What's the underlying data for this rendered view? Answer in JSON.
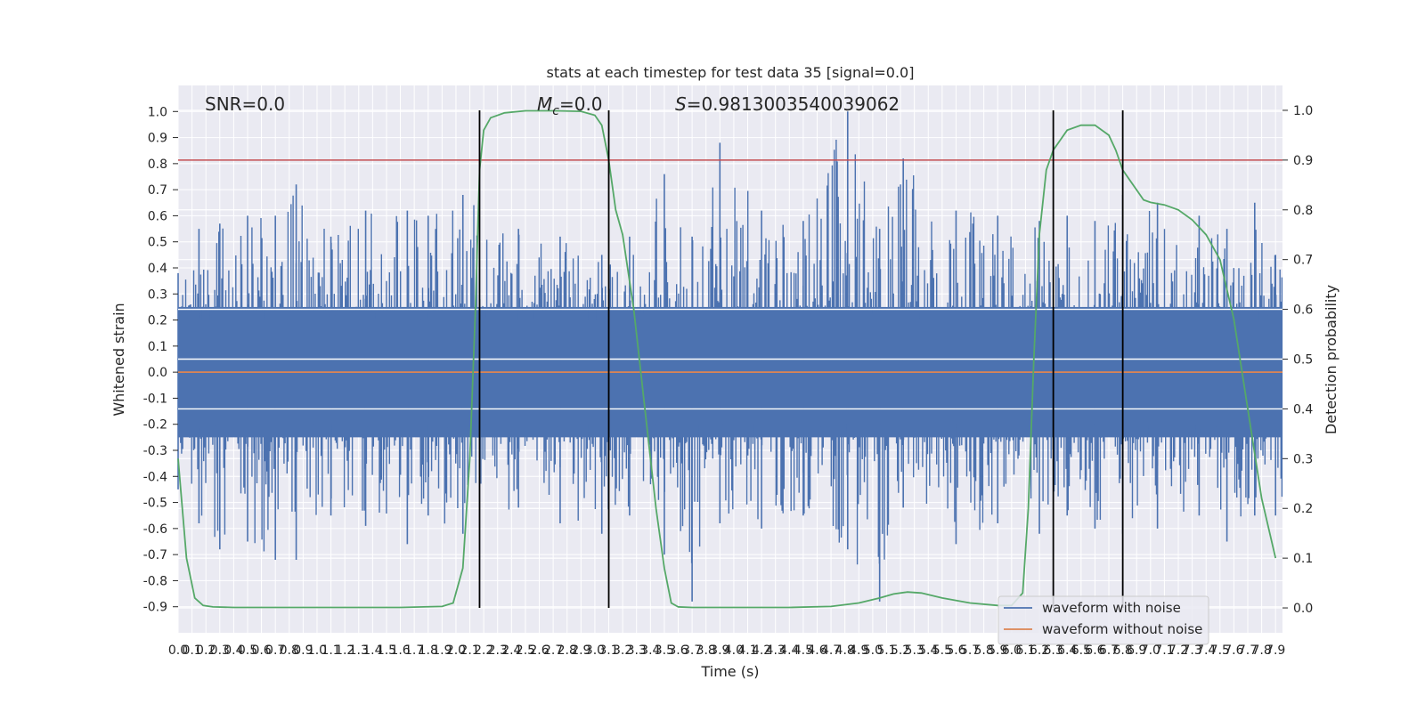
{
  "chart_data": {
    "type": "line",
    "title": "stats at each timestep for test data 35 [signal=0.0]",
    "xlabel": "Time (s)",
    "ylabel": "Whitened strain",
    "y2label": "Detection probability",
    "xlim": [
      0.0,
      7.95
    ],
    "ylim": [
      -1.0,
      1.1
    ],
    "y2lim": [
      -0.05,
      1.05
    ],
    "grid": true,
    "legend_placement": "bottom-right",
    "annotations": {
      "snr": "SNR=0.0",
      "mc_symbol": "M",
      "mc_sub": "c",
      "mc_value": "=0.0",
      "s_symbol": "S",
      "s_value": "=0.9813003540039062"
    },
    "x_ticks": [
      "0.0",
      "0.1",
      "0.2",
      "0.3",
      "0.4",
      "0.5",
      "0.6",
      "0.7",
      "0.8",
      "0.9",
      "1.0",
      "1.1",
      "1.2",
      "1.3",
      "1.4",
      "1.5",
      "1.6",
      "1.7",
      "1.8",
      "1.9",
      "2.0",
      "2.1",
      "2.2",
      "2.3",
      "2.4",
      "2.5",
      "2.6",
      "2.7",
      "2.8",
      "2.9",
      "3.0",
      "3.1",
      "3.2",
      "3.3",
      "3.4",
      "3.5",
      "3.6",
      "3.7",
      "3.8",
      "3.9",
      "4.0",
      "4.1",
      "4.2",
      "4.3",
      "4.4",
      "4.5",
      "4.6",
      "4.7",
      "4.8",
      "4.9",
      "5.0",
      "5.1",
      "5.2",
      "5.3",
      "5.4",
      "5.5",
      "5.6",
      "5.7",
      "5.8",
      "5.9",
      "6.0",
      "6.1",
      "6.2",
      "6.3",
      "6.4",
      "6.5",
      "6.6",
      "6.7",
      "6.8",
      "6.9",
      "7.0",
      "7.1",
      "7.2",
      "7.3",
      "7.4",
      "7.5",
      "7.6",
      "7.7",
      "7.8",
      "7.9"
    ],
    "y_ticks": [
      "-0.9",
      "-0.8",
      "-0.7",
      "-0.6",
      "-0.5",
      "-0.4",
      "-0.3",
      "-0.2",
      "-0.1",
      "0.0",
      "0.1",
      "0.2",
      "0.3",
      "0.4",
      "0.5",
      "0.6",
      "0.7",
      "0.8",
      "0.9",
      "1.0"
    ],
    "y2_ticks": [
      "0.0",
      "0.1",
      "0.2",
      "0.3",
      "0.4",
      "0.5",
      "0.6",
      "0.7",
      "0.8",
      "0.9",
      "1.0"
    ],
    "threshold": {
      "value": 0.9,
      "axis": "y2",
      "color": "#c44e52"
    },
    "vertical_lines": [
      2.17,
      3.1,
      6.3,
      6.8
    ],
    "series": [
      {
        "name": "waveform with noise",
        "color": "#4c72b0",
        "summary": "dense noise, mostly within ±0.35, peaks up to 1.0",
        "x": [
          0.0,
          0.15,
          0.3,
          0.5,
          0.7,
          0.85,
          1.1,
          1.35,
          1.65,
          1.8,
          2.05,
          2.45,
          2.75,
          3.05,
          3.25,
          3.5,
          3.7,
          3.9,
          4.2,
          4.5,
          4.82,
          5.05,
          5.22,
          5.6,
          5.9,
          6.2,
          6.4,
          6.6,
          6.8,
          7.05,
          7.35,
          7.55,
          7.75,
          7.9
        ],
        "y": [
          0.38,
          0.55,
          0.57,
          0.6,
          0.6,
          0.72,
          0.52,
          0.62,
          0.62,
          0.6,
          0.68,
          0.55,
          0.52,
          0.45,
          0.52,
          0.76,
          0.52,
          0.88,
          0.62,
          0.58,
          1.0,
          0.55,
          0.82,
          0.62,
          0.6,
          0.58,
          0.6,
          0.58,
          0.68,
          0.65,
          0.6,
          0.55,
          0.65,
          0.45
        ],
        "y_min": [
          -0.45,
          -0.58,
          -0.68,
          -0.65,
          -0.72,
          -0.72,
          -0.55,
          -0.59,
          -0.66,
          -0.55,
          -0.62,
          -0.52,
          -0.58,
          -0.62,
          -0.55,
          -0.7,
          -0.88,
          -0.58,
          -0.6,
          -0.55,
          -0.68,
          -0.88,
          -0.52,
          -0.66,
          -0.58,
          -0.62,
          -0.55,
          -0.6,
          -0.62,
          -0.6,
          -0.55,
          -0.65,
          -0.55,
          -0.55
        ]
      },
      {
        "name": "waveform without noise",
        "color": "#dd8452",
        "x": [
          0.0,
          7.95
        ],
        "y": [
          0.0,
          0.0
        ]
      },
      {
        "name": "detection probability",
        "axis": "y2",
        "color": "#55a868",
        "x": [
          0.0,
          0.06,
          0.12,
          0.18,
          0.25,
          0.4,
          0.8,
          1.2,
          1.6,
          1.9,
          1.98,
          2.05,
          2.1,
          2.14,
          2.17,
          2.2,
          2.25,
          2.35,
          2.5,
          2.7,
          2.9,
          3.0,
          3.05,
          3.1,
          3.15,
          3.2,
          3.28,
          3.36,
          3.44,
          3.5,
          3.55,
          3.6,
          3.7,
          4.0,
          4.4,
          4.7,
          4.9,
          5.05,
          5.15,
          5.25,
          5.35,
          5.5,
          5.7,
          5.9,
          6.0,
          6.08,
          6.12,
          6.16,
          6.2,
          6.25,
          6.3,
          6.35,
          6.4,
          6.5,
          6.6,
          6.7,
          6.75,
          6.8,
          6.85,
          6.9,
          6.95,
          7.0,
          7.1,
          7.2,
          7.3,
          7.4,
          7.5,
          7.6,
          7.7,
          7.8,
          7.9
        ],
        "y": [
          0.3,
          0.1,
          0.02,
          0.005,
          0.002,
          0.001,
          0.001,
          0.001,
          0.001,
          0.003,
          0.01,
          0.08,
          0.3,
          0.6,
          0.88,
          0.96,
          0.985,
          0.995,
          0.999,
          0.999,
          0.998,
          0.99,
          0.97,
          0.9,
          0.8,
          0.75,
          0.6,
          0.4,
          0.2,
          0.08,
          0.01,
          0.002,
          0.001,
          0.001,
          0.001,
          0.003,
          0.01,
          0.02,
          0.028,
          0.032,
          0.03,
          0.02,
          0.01,
          0.005,
          0.005,
          0.03,
          0.2,
          0.5,
          0.75,
          0.88,
          0.92,
          0.94,
          0.96,
          0.97,
          0.97,
          0.95,
          0.92,
          0.88,
          0.86,
          0.84,
          0.82,
          0.815,
          0.81,
          0.8,
          0.78,
          0.75,
          0.7,
          0.58,
          0.4,
          0.22,
          0.1
        ]
      }
    ]
  },
  "legend": {
    "items": [
      {
        "label": "waveform with noise",
        "color": "#4c72b0"
      },
      {
        "label": "waveform without noise",
        "color": "#dd8452"
      }
    ]
  }
}
